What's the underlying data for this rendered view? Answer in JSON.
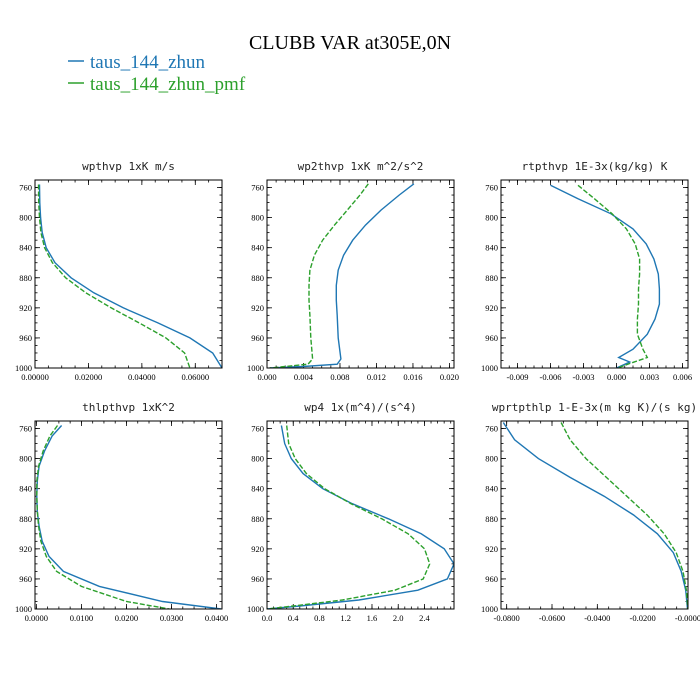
{
  "figure": {
    "title": "CLUBB VAR at305E,0N",
    "legend": [
      {
        "label": "taus_144_zhun",
        "color": "#1f77b4"
      },
      {
        "label": "taus_144_zhun_pmf",
        "color": "#2ca02c"
      }
    ]
  },
  "chart_data": [
    {
      "type": "line",
      "title": "wpthvp  1xK m/s",
      "xlim": [
        0,
        0.07
      ],
      "ylim": [
        1000,
        750
      ],
      "xticks": [
        0,
        0.02,
        0.04,
        0.06
      ],
      "xtick_labels": [
        "0.00000",
        "0.02000",
        "0.04000",
        "0.06000"
      ],
      "yticks": [
        760,
        800,
        840,
        880,
        920,
        960,
        1000
      ],
      "ytick_labels": [
        "760",
        "800",
        "840",
        "880",
        "920",
        "960",
        "1000"
      ],
      "series": [
        {
          "name": "taus_144_zhun",
          "color": "#1f77b4",
          "dashed": false,
          "x": [
            0.0017,
            0.0018,
            0.0021,
            0.0027,
            0.0042,
            0.0075,
            0.0135,
            0.022,
            0.033,
            0.046,
            0.058,
            0.0665,
            0.07
          ],
          "y": [
            756,
            780,
            800,
            820,
            840,
            860,
            880,
            900,
            920,
            940,
            960,
            980,
            1000
          ]
        },
        {
          "name": "taus_144_zhun_pmf",
          "color": "#2ca02c",
          "dashed": true,
          "x": [
            0.0013,
            0.0014,
            0.0017,
            0.0022,
            0.0036,
            0.0065,
            0.0115,
            0.019,
            0.0285,
            0.039,
            0.049,
            0.056,
            0.058
          ],
          "y": [
            756,
            780,
            800,
            820,
            840,
            860,
            880,
            900,
            920,
            940,
            960,
            980,
            1000
          ]
        }
      ]
    },
    {
      "type": "line",
      "title": "wp2thvp  1xK m^2/s^2",
      "xlim": [
        0,
        0.0205
      ],
      "ylim": [
        1000,
        750
      ],
      "xticks": [
        0,
        0.004,
        0.008,
        0.012,
        0.016,
        0.02
      ],
      "xtick_labels": [
        "0.000",
        "0.004",
        "0.008",
        "0.012",
        "0.016",
        "0.020"
      ],
      "yticks": [
        760,
        800,
        840,
        880,
        920,
        960,
        1000
      ],
      "ytick_labels": [
        "760",
        "800",
        "840",
        "880",
        "920",
        "960",
        "1000"
      ],
      "series": [
        {
          "name": "taus_144_zhun",
          "color": "#1f77b4",
          "dashed": false,
          "x": [
            0.0161,
            0.0145,
            0.0125,
            0.0108,
            0.0094,
            0.0084,
            0.0078,
            0.0076,
            0.0076,
            0.0077,
            0.0078,
            0.0081,
            0.0077,
            0.004,
            0.0003
          ],
          "y": [
            755,
            770,
            790,
            810,
            830,
            850,
            870,
            890,
            910,
            930,
            960,
            988,
            995,
            998,
            1000
          ]
        },
        {
          "name": "taus_144_zhun_pmf",
          "color": "#2ca02c",
          "dashed": true,
          "x": [
            0.0111,
            0.0102,
            0.0088,
            0.0074,
            0.0061,
            0.0052,
            0.0047,
            0.0046,
            0.0046,
            0.0047,
            0.0048,
            0.005,
            0.0045,
            0.002,
            0.0003
          ],
          "y": [
            755,
            770,
            790,
            810,
            830,
            850,
            870,
            890,
            910,
            930,
            960,
            988,
            995,
            998,
            1000
          ]
        }
      ]
    },
    {
      "type": "line",
      "title": "rtpthvp  1E-3x(kg/kg) K",
      "xlim": [
        -0.0105,
        0.0065
      ],
      "ylim": [
        1000,
        750
      ],
      "xticks": [
        -0.009,
        -0.006,
        -0.003,
        0,
        0.003,
        0.006
      ],
      "xtick_labels": [
        "-0.009",
        "-0.006",
        "-0.003",
        "0.000",
        "0.003",
        "0.006"
      ],
      "yticks": [
        760,
        800,
        840,
        880,
        920,
        960,
        1000
      ],
      "ytick_labels": [
        "760",
        "800",
        "840",
        "880",
        "920",
        "960",
        "1000"
      ],
      "series": [
        {
          "name": "taus_144_zhun",
          "color": "#1f77b4",
          "dashed": false,
          "x": [
            -0.006,
            -0.0035,
            -0.0005,
            0.0015,
            0.0027,
            0.0034,
            0.0038,
            0.0039,
            0.0039,
            0.0035,
            0.0028,
            0.0015,
            0.0002,
            0.0012,
            0.0
          ],
          "y": [
            757,
            775,
            795,
            815,
            835,
            855,
            875,
            895,
            915,
            935,
            955,
            975,
            986,
            992,
            1000
          ]
        },
        {
          "name": "taus_144_zhun_pmf",
          "color": "#2ca02c",
          "dashed": true,
          "x": [
            -0.0035,
            -0.002,
            -0.0004,
            0.0009,
            0.0017,
            0.0021,
            0.0021,
            0.002,
            0.002,
            0.0019,
            0.0019,
            0.0024,
            0.0028,
            0.0012,
            0.0001
          ],
          "y": [
            757,
            775,
            795,
            815,
            835,
            855,
            875,
            895,
            915,
            935,
            955,
            975,
            986,
            994,
            1000
          ]
        }
      ]
    },
    {
      "type": "line",
      "title": "thlpthvp  1xK^2",
      "xlim": [
        -0.0003,
        0.0412
      ],
      "ylim": [
        1000,
        750
      ],
      "xticks": [
        0,
        0.01,
        0.02,
        0.03,
        0.04
      ],
      "xtick_labels": [
        "0.0000",
        "0.0100",
        "0.0200",
        "0.0300",
        "0.0400"
      ],
      "yticks": [
        760,
        800,
        840,
        880,
        920,
        960,
        1000
      ],
      "ytick_labels": [
        "760",
        "800",
        "840",
        "880",
        "920",
        "960",
        "1000"
      ],
      "series": [
        {
          "name": "taus_144_zhun",
          "color": "#1f77b4",
          "dashed": false,
          "x": [
            0.0056,
            0.0035,
            0.0018,
            0.0006,
            0.0002,
            0.0001,
            0.0002,
            0.0006,
            0.0013,
            0.0028,
            0.006,
            0.014,
            0.028,
            0.041
          ],
          "y": [
            756,
            770,
            790,
            810,
            830,
            850,
            870,
            890,
            910,
            930,
            950,
            970,
            990,
            1000
          ]
        },
        {
          "name": "taus_144_zhun_pmf",
          "color": "#2ca02c",
          "dashed": true,
          "x": [
            0.0047,
            0.003,
            0.0015,
            0.0005,
            0.0001,
            0.0001,
            0.0002,
            0.0005,
            0.001,
            0.0022,
            0.0045,
            0.01,
            0.02,
            0.0295
          ],
          "y": [
            756,
            770,
            790,
            810,
            830,
            850,
            870,
            890,
            910,
            930,
            950,
            970,
            990,
            1000
          ]
        }
      ]
    },
    {
      "type": "line",
      "title": "wp4  1x(m^4)/(s^4)",
      "xlim": [
        0,
        2.85
      ],
      "ylim": [
        1000,
        750
      ],
      "xticks": [
        0,
        0.4,
        0.8,
        1.2,
        1.6,
        2.0,
        2.4
      ],
      "xtick_labels": [
        "0.0",
        "0.4",
        "0.8",
        "1.2",
        "1.6",
        "2.0",
        "2.4"
      ],
      "yticks": [
        760,
        800,
        840,
        880,
        920,
        960,
        1000
      ],
      "ytick_labels": [
        "760",
        "800",
        "840",
        "880",
        "920",
        "960",
        "1000"
      ],
      "series": [
        {
          "name": "taus_144_zhun",
          "color": "#1f77b4",
          "dashed": false,
          "x": [
            0.22,
            0.27,
            0.37,
            0.55,
            0.85,
            1.3,
            1.85,
            2.35,
            2.7,
            2.85,
            2.75,
            2.3,
            1.4,
            0.5,
            0.0
          ],
          "y": [
            756,
            780,
            800,
            820,
            840,
            860,
            880,
            900,
            920,
            940,
            960,
            975,
            988,
            996,
            1000
          ]
        },
        {
          "name": "taus_144_zhun_pmf",
          "color": "#2ca02c",
          "dashed": true,
          "x": [
            0.3,
            0.33,
            0.43,
            0.6,
            0.88,
            1.28,
            1.75,
            2.15,
            2.4,
            2.48,
            2.38,
            1.95,
            1.15,
            0.4,
            0.0
          ],
          "y": [
            756,
            780,
            800,
            820,
            840,
            860,
            880,
            900,
            920,
            940,
            960,
            975,
            988,
            996,
            1000
          ]
        }
      ]
    },
    {
      "type": "line",
      "title": "wprtpthlp  1-E-3x(m kg K)/(s kg)",
      "xlim": [
        -0.0825,
        0.0
      ],
      "ylim": [
        1000,
        750
      ],
      "xticks": [
        -0.08,
        -0.06,
        -0.04,
        -0.02,
        0
      ],
      "xtick_labels": [
        "-0.0800",
        "-0.0600",
        "-0.0400",
        "-0.0200",
        "-0.0000"
      ],
      "yticks": [
        760,
        800,
        840,
        880,
        920,
        960,
        1000
      ],
      "ytick_labels": [
        "760",
        "800",
        "840",
        "880",
        "920",
        "960",
        "1000"
      ],
      "series": [
        {
          "name": "taus_144_zhun",
          "color": "#1f77b4",
          "dashed": false,
          "x": [
            -0.0815,
            -0.0765,
            -0.066,
            -0.052,
            -0.037,
            -0.024,
            -0.0135,
            -0.0065,
            -0.003,
            -0.001,
            -0.0002
          ],
          "y": [
            752,
            775,
            800,
            825,
            850,
            875,
            900,
            925,
            950,
            975,
            1000
          ]
        },
        {
          "name": "taus_144_zhun_pmf",
          "color": "#2ca02c",
          "dashed": true,
          "x": [
            -0.056,
            -0.052,
            -0.045,
            -0.036,
            -0.027,
            -0.018,
            -0.0105,
            -0.0052,
            -0.0022,
            -0.0007,
            -0.0001
          ],
          "y": [
            752,
            775,
            800,
            825,
            850,
            875,
            900,
            925,
            950,
            975,
            1000
          ]
        }
      ]
    }
  ]
}
